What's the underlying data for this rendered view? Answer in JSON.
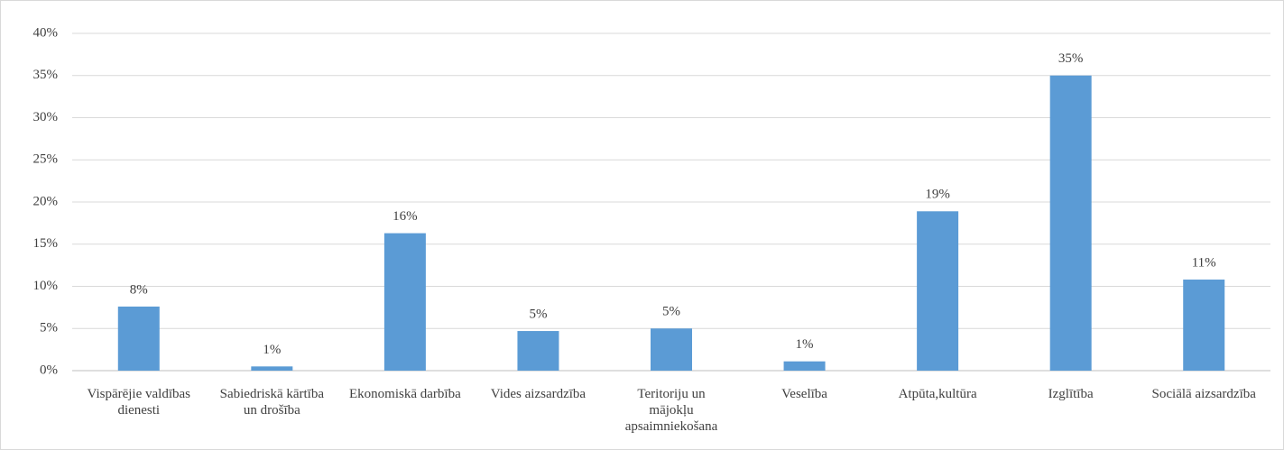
{
  "chart_data": {
    "type": "bar",
    "categories": [
      "Vispārējie valdības dienesti",
      "Sabiedriskā kārtība un drošība",
      "Ekonomiskā darbība",
      "Vides aizsardzība",
      "Teritoriju un mājokļu apsaimniekošana",
      "Veselība",
      "Atpūta,kultūra",
      "Izglītība",
      "Sociālā aizsardzība"
    ],
    "values": [
      7.6,
      0.5,
      16.3,
      4.7,
      5.0,
      1.1,
      18.9,
      35.0,
      10.8
    ],
    "value_labels": [
      "8%",
      "1%",
      "16%",
      "5%",
      "5%",
      "1%",
      "19%",
      "35%",
      "11%"
    ],
    "color": "#5b9bd5",
    "ylim": [
      0,
      40
    ],
    "yticks": [
      {
        "value": 0,
        "label": "0%"
      },
      {
        "value": 5,
        "label": "5%"
      },
      {
        "value": 10,
        "label": "10%"
      },
      {
        "value": 15,
        "label": "15%"
      },
      {
        "value": 20,
        "label": "20%"
      },
      {
        "value": 25,
        "label": "25%"
      },
      {
        "value": 30,
        "label": "30%"
      },
      {
        "value": 35,
        "label": "35%"
      },
      {
        "value": 40,
        "label": "40%"
      }
    ],
    "grid": true
  }
}
